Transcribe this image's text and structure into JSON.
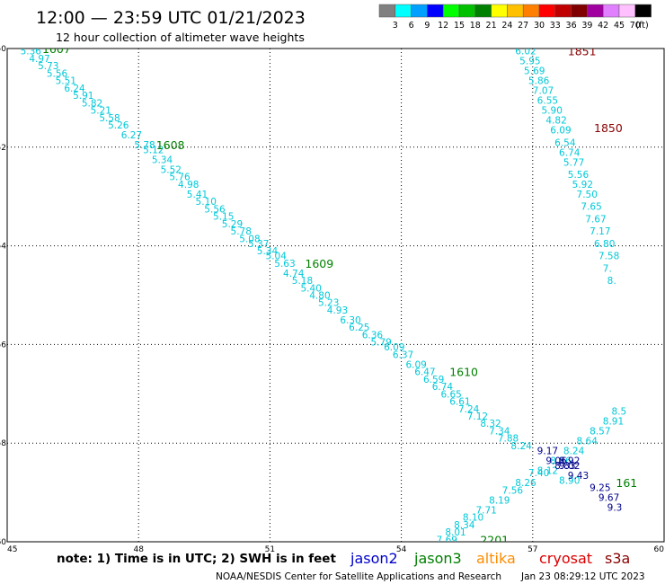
{
  "header": {
    "title": "12:00 — 23:59 UTC 01/21/2023",
    "subtitle": "12 hour collection of altimeter wave heights"
  },
  "legend": {
    "unit": "(ft)",
    "bins": [
      {
        "label": "3",
        "color": "#808080"
      },
      {
        "label": "6",
        "color": "#00ffff"
      },
      {
        "label": "9",
        "color": "#00a0ff"
      },
      {
        "label": "12",
        "color": "#0000ff"
      },
      {
        "label": "15",
        "color": "#00ff00"
      },
      {
        "label": "18",
        "color": "#00c000"
      },
      {
        "label": "21",
        "color": "#008000"
      },
      {
        "label": "24",
        "color": "#ffff00"
      },
      {
        "label": "27",
        "color": "#ffc000"
      },
      {
        "label": "30",
        "color": "#ff8000"
      },
      {
        "label": "33",
        "color": "#ff0000"
      },
      {
        "label": "36",
        "color": "#c00000"
      },
      {
        "label": "39",
        "color": "#800000"
      },
      {
        "label": "42",
        "color": "#a000a0"
      },
      {
        "label": "45",
        "color": "#e080ff"
      },
      {
        "label": "70",
        "color": "#ffc0ff"
      },
      {
        "label": "",
        "color": "#000000"
      }
    ]
  },
  "footer": {
    "note": "note:  1) Time is in UTC; 2) SWH is in feet",
    "satellites": [
      {
        "name": "jason2",
        "color": "#0000cc"
      },
      {
        "name": "jason3",
        "color": "#008000"
      },
      {
        "name": "altika",
        "color": "#ff8c00"
      },
      {
        "name": "cryosat",
        "color": "#dd0000"
      },
      {
        "name": "s3a",
        "color": "#8b0000"
      }
    ],
    "credit": "NOAA/NESDIS Center for Satellite Applications and Research",
    "timestamp": "Jan 23 08:29:12 UTC 2023"
  },
  "chart_data": {
    "type": "scatter",
    "xlim": [
      45,
      60
    ],
    "ylim": [
      -60,
      -50
    ],
    "xticks": [
      {
        "v": 45,
        "label": "45"
      },
      {
        "v": 48,
        "label": "48"
      },
      {
        "v": 51,
        "label": "51"
      },
      {
        "v": 54,
        "label": "54"
      },
      {
        "v": 57,
        "label": "57"
      },
      {
        "v": 60,
        "label": "60"
      }
    ],
    "yticks": [
      {
        "v": -50,
        "label": "-50"
      },
      {
        "v": -52,
        "label": "-52"
      },
      {
        "v": -54,
        "label": "-54"
      },
      {
        "v": -56,
        "label": "-56"
      },
      {
        "v": -58,
        "label": "-58"
      },
      {
        "v": -60,
        "label": "-60"
      }
    ],
    "grid": true,
    "tracks": [
      {
        "color": "#00c8d8",
        "points": [
          {
            "x": 45.3,
            "y": -50.05,
            "label": "5.36"
          },
          {
            "x": 45.5,
            "y": -50.2,
            "label": "4.97"
          },
          {
            "x": 45.7,
            "y": -50.35,
            "label": "5.73"
          },
          {
            "x": 45.9,
            "y": -50.5,
            "label": "5.56"
          },
          {
            "x": 46.1,
            "y": -50.65,
            "label": "5.51"
          },
          {
            "x": 46.3,
            "y": -50.8,
            "label": "6.24"
          },
          {
            "x": 46.5,
            "y": -50.95,
            "label": "5.91"
          },
          {
            "x": 46.7,
            "y": -51.1,
            "label": "5.82"
          },
          {
            "x": 46.9,
            "y": -51.25,
            "label": "5.21"
          },
          {
            "x": 47.1,
            "y": -51.4,
            "label": "5.58"
          },
          {
            "x": 47.3,
            "y": -51.55,
            "label": "5.26"
          },
          {
            "x": 47.6,
            "y": -51.75,
            "label": "6.27"
          },
          {
            "x": 47.9,
            "y": -51.95,
            "label": "5.78"
          },
          {
            "x": 48.1,
            "y": -52.05,
            "label": "5.12"
          },
          {
            "x": 48.3,
            "y": -52.25,
            "label": "5.34"
          },
          {
            "x": 48.5,
            "y": -52.45,
            "label": "5.52"
          },
          {
            "x": 48.7,
            "y": -52.6,
            "label": "5.76"
          },
          {
            "x": 48.9,
            "y": -52.75,
            "label": "4.98"
          },
          {
            "x": 49.1,
            "y": -52.95,
            "label": "5.41"
          },
          {
            "x": 49.3,
            "y": -53.1,
            "label": "5.10"
          },
          {
            "x": 49.5,
            "y": -53.25,
            "label": "5.56"
          },
          {
            "x": 49.7,
            "y": -53.4,
            "label": "5.15"
          },
          {
            "x": 49.9,
            "y": -53.55,
            "label": "5.29"
          },
          {
            "x": 50.1,
            "y": -53.7,
            "label": "5.78"
          },
          {
            "x": 50.3,
            "y": -53.85,
            "label": "5.08"
          },
          {
            "x": 50.5,
            "y": -53.95,
            "label": "5.37"
          },
          {
            "x": 50.7,
            "y": -54.1,
            "label": "5.34"
          },
          {
            "x": 50.9,
            "y": -54.2,
            "label": "5.04"
          },
          {
            "x": 51.1,
            "y": -54.35,
            "label": "5.63"
          },
          {
            "x": 51.3,
            "y": -54.55,
            "label": "4.74"
          },
          {
            "x": 51.5,
            "y": -54.7,
            "label": "5.18"
          },
          {
            "x": 51.7,
            "y": -54.85,
            "label": "5.40"
          },
          {
            "x": 51.9,
            "y": -55.0,
            "label": "4.80"
          },
          {
            "x": 52.1,
            "y": -55.15,
            "label": "5.23"
          },
          {
            "x": 52.3,
            "y": -55.3,
            "label": "4.93"
          },
          {
            "x": 52.6,
            "y": -55.5,
            "label": "6.30"
          },
          {
            "x": 52.8,
            "y": -55.65,
            "label": "6.25"
          },
          {
            "x": 53.1,
            "y": -55.8,
            "label": "6.36"
          },
          {
            "x": 53.3,
            "y": -55.95,
            "label": "5.79"
          },
          {
            "x": 53.6,
            "y": -56.05,
            "label": "6.09"
          },
          {
            "x": 53.8,
            "y": -56.2,
            "label": "6.37"
          },
          {
            "x": 54.1,
            "y": -56.4,
            "label": "6.09"
          },
          {
            "x": 54.3,
            "y": -56.55,
            "label": "6.47"
          },
          {
            "x": 54.5,
            "y": -56.7,
            "label": "6.59"
          },
          {
            "x": 54.7,
            "y": -56.85,
            "label": "6.74"
          },
          {
            "x": 54.9,
            "y": -57.0,
            "label": "6.65"
          },
          {
            "x": 55.1,
            "y": -57.15,
            "label": "6.61"
          },
          {
            "x": 55.3,
            "y": -57.3,
            "label": "7.24"
          },
          {
            "x": 55.5,
            "y": -57.45,
            "label": "7.12"
          },
          {
            "x": 55.8,
            "y": -57.6,
            "label": "8.32"
          },
          {
            "x": 56.0,
            "y": -57.75,
            "label": "7.34"
          },
          {
            "x": 56.2,
            "y": -57.9,
            "label": "7.88"
          },
          {
            "x": 56.5,
            "y": -58.05,
            "label": "8.24"
          },
          {
            "x": 56.6,
            "y": -58.8,
            "label": "8.26"
          },
          {
            "x": 56.9,
            "y": -58.6,
            "label": "7.40"
          },
          {
            "x": 56.3,
            "y": -58.95,
            "label": "7.56"
          },
          {
            "x": 56.0,
            "y": -59.15,
            "label": "8.19"
          },
          {
            "x": 55.7,
            "y": -59.35,
            "label": "7.71"
          },
          {
            "x": 55.4,
            "y": -59.5,
            "label": "8.10"
          },
          {
            "x": 55.2,
            "y": -59.65,
            "label": "8.34"
          },
          {
            "x": 55.0,
            "y": -59.8,
            "label": "8.01"
          },
          {
            "x": 54.8,
            "y": -59.95,
            "label": "7.69"
          },
          {
            "x": 54.6,
            "y": -60.1,
            "label": "8.41"
          },
          {
            "x": 54.4,
            "y": -60.25,
            "label": "7.77"
          },
          {
            "x": 54.1,
            "y": -60.4,
            "label": "8.78"
          },
          {
            "x": 57.1,
            "y": -58.55,
            "label": "8.12"
          },
          {
            "x": 57.4,
            "y": -58.35,
            "label": "8.56"
          },
          {
            "x": 57.7,
            "y": -58.15,
            "label": "8.24"
          },
          {
            "x": 58.0,
            "y": -57.95,
            "label": "8.64"
          },
          {
            "x": 58.3,
            "y": -57.75,
            "label": "8.57"
          },
          {
            "x": 58.6,
            "y": -57.55,
            "label": "8.91"
          },
          {
            "x": 58.8,
            "y": -57.35,
            "label": "8.5"
          },
          {
            "x": 57.6,
            "y": -58.75,
            "label": "8.90"
          },
          {
            "x": 56.6,
            "y": -50.05,
            "label": "6.02"
          },
          {
            "x": 56.7,
            "y": -50.25,
            "label": "5.95"
          },
          {
            "x": 56.8,
            "y": -50.45,
            "label": "5.69"
          },
          {
            "x": 56.9,
            "y": -50.65,
            "label": "5.86"
          },
          {
            "x": 57.0,
            "y": -50.85,
            "label": "7.07"
          },
          {
            "x": 57.1,
            "y": -51.05,
            "label": "6.55"
          },
          {
            "x": 57.2,
            "y": -51.25,
            "label": "5.90"
          },
          {
            "x": 57.3,
            "y": -51.45,
            "label": "4.82"
          },
          {
            "x": 57.4,
            "y": -51.65,
            "label": "6.09"
          },
          {
            "x": 57.5,
            "y": -51.9,
            "label": "6.54"
          },
          {
            "x": 57.6,
            "y": -52.1,
            "label": "6.74"
          },
          {
            "x": 57.7,
            "y": -52.3,
            "label": "5.77"
          },
          {
            "x": 57.8,
            "y": -52.55,
            "label": "5.56"
          },
          {
            "x": 57.9,
            "y": -52.75,
            "label": "5.92"
          },
          {
            "x": 58.0,
            "y": -52.95,
            "label": "7.50"
          },
          {
            "x": 58.1,
            "y": -53.2,
            "label": "7.65"
          },
          {
            "x": 58.2,
            "y": -53.45,
            "label": "7.67"
          },
          {
            "x": 58.3,
            "y": -53.7,
            "label": "7.17"
          },
          {
            "x": 58.4,
            "y": -53.95,
            "label": "6.80"
          },
          {
            "x": 58.5,
            "y": -54.2,
            "label": "7.58"
          },
          {
            "x": 58.6,
            "y": -54.45,
            "label": "7."
          },
          {
            "x": 58.7,
            "y": -54.7,
            "label": "8."
          }
        ]
      },
      {
        "color": "#00008b",
        "points": [
          {
            "x": 57.1,
            "y": -58.15,
            "label": "9.17"
          },
          {
            "x": 57.3,
            "y": -58.35,
            "label": "9.06"
          },
          {
            "x": 57.6,
            "y": -58.35,
            "label": "8.92"
          },
          {
            "x": 57.5,
            "y": -58.45,
            "label": "8.83"
          },
          {
            "x": 57.6,
            "y": -58.45,
            "label": "9.02"
          },
          {
            "x": 57.8,
            "y": -58.65,
            "label": "9.43"
          },
          {
            "x": 58.3,
            "y": -58.9,
            "label": "9.25"
          },
          {
            "x": 58.5,
            "y": -59.1,
            "label": "9.67"
          },
          {
            "x": 58.7,
            "y": -59.3,
            "label": "9.3"
          }
        ]
      }
    ],
    "time_labels": [
      {
        "x": 45.8,
        "y": -50.0,
        "label": "1607",
        "color": "#008000"
      },
      {
        "x": 48.4,
        "y": -51.95,
        "label": "1608",
        "color": "#008000"
      },
      {
        "x": 51.8,
        "y": -54.35,
        "label": "1609",
        "color": "#008000"
      },
      {
        "x": 55.1,
        "y": -56.55,
        "label": "1610",
        "color": "#008000"
      },
      {
        "x": 58.9,
        "y": -58.8,
        "label": "161",
        "color": "#008000"
      },
      {
        "x": 55.8,
        "y": -59.95,
        "label": "2201",
        "color": "#008000"
      },
      {
        "x": 55.0,
        "y": -60.4,
        "label": "2200",
        "color": "#008000"
      },
      {
        "x": 57.8,
        "y": -50.05,
        "label": "1851",
        "color": "#8b0000"
      },
      {
        "x": 58.4,
        "y": -51.6,
        "label": "1850",
        "color": "#8b0000"
      }
    ]
  }
}
